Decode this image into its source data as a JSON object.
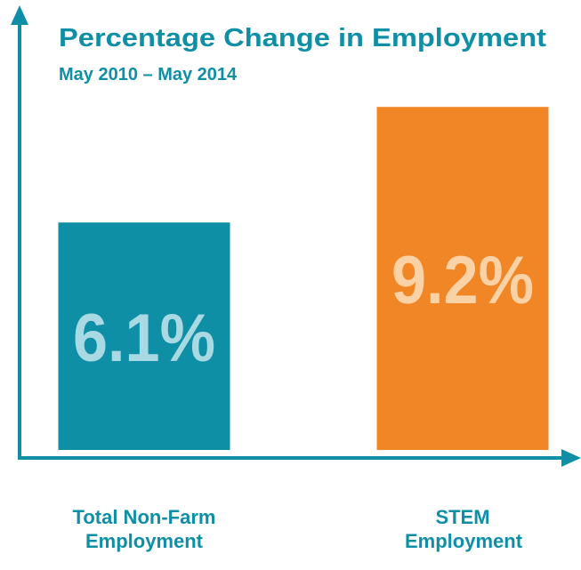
{
  "chart_data": {
    "type": "bar",
    "title": "Percentage Change in Employment",
    "subtitle": "May 2010 – May 2014",
    "categories": [
      "Total Non-Farm Employment",
      "STEM Employment"
    ],
    "values": [
      6.1,
      9.2
    ],
    "value_labels": [
      "6.1%",
      "9.2%"
    ],
    "colors": [
      "#0e8fa6",
      "#f08625"
    ],
    "label_colors": [
      "#a9d9e3",
      "#fbd2a6"
    ],
    "ylim": [
      0,
      11.4
    ]
  }
}
